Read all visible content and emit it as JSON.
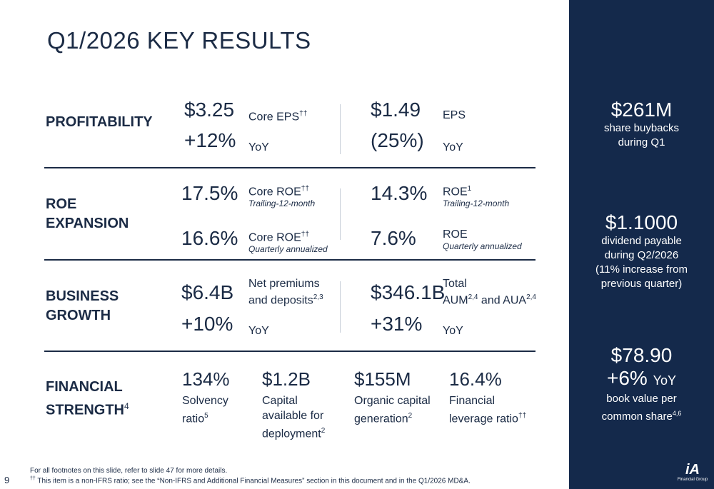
{
  "title": "Q1/2026 KEY RESULTS",
  "profitability": {
    "label": "PROFITABILITY",
    "core_eps_value": "$3.25",
    "core_eps_label": "Core EPS",
    "core_eps_sup": "††",
    "core_eps_yoy": "+12%",
    "core_eps_yoy_label": "YoY",
    "eps_value": "$1.49",
    "eps_label": "EPS",
    "eps_yoy": "(25%)",
    "eps_yoy_label": "YoY"
  },
  "roe": {
    "label_line1": "ROE",
    "label_line2": "EXPANSION",
    "core_roe_ttm_value": "17.5%",
    "core_roe_ttm_label": "Core ROE",
    "core_roe_ttm_sup": "††",
    "core_roe_ttm_sub": "Trailing-12-month",
    "roe_ttm_value": "14.3%",
    "roe_ttm_label": "ROE",
    "roe_ttm_sup": "1",
    "roe_ttm_sub": "Trailing-12-month",
    "core_roe_q_value": "16.6%",
    "core_roe_q_label": "Core ROE",
    "core_roe_q_sup": "††",
    "core_roe_q_sub": "Quarterly annualized",
    "roe_q_value": "7.6%",
    "roe_q_label": "ROE",
    "roe_q_sub": "Quarterly annualized"
  },
  "growth": {
    "label_line1": "BUSINESS",
    "label_line2": "GROWTH",
    "premiums_value": "$6.4B",
    "premiums_label_line1": "Net premiums",
    "premiums_label_line2": "and deposits",
    "premiums_sup": "2,3",
    "premiums_yoy": "+10%",
    "premiums_yoy_label": "YoY",
    "aum_value": "$346.1B",
    "aum_label_line1": "Total",
    "aum_label_a": "AUM",
    "aum_sup_a": "2,4",
    "aum_label_b": " and AUA",
    "aum_sup_b": "2,4",
    "aum_yoy": "+31%",
    "aum_yoy_label": "YoY"
  },
  "strength": {
    "label_line1": "FINANCIAL",
    "label_line2": "STRENGTH",
    "label_sup": "4",
    "solvency_value": "134%",
    "solvency_label_line1": "Solvency",
    "solvency_label_line2": "ratio",
    "solvency_sup": "5",
    "capital_value": "$1.2B",
    "capital_label_line1": "Capital",
    "capital_label_line2": "available for",
    "capital_label_line3": "deployment",
    "capital_sup": "2",
    "organic_value": "$155M",
    "organic_label_line1": "Organic capital",
    "organic_label_line2": "generation",
    "organic_sup": "2",
    "leverage_value": "16.4%",
    "leverage_label_line1": "Financial",
    "leverage_label_line2": "leverage ratio",
    "leverage_sup": "††"
  },
  "sidebar": {
    "buybacks_value": "$261M",
    "buybacks_line1": "share buybacks",
    "buybacks_line2": "during Q1",
    "dividend_value": "$1.1000",
    "dividend_line1": "dividend payable",
    "dividend_line2": "during Q2/2026",
    "dividend_line3": "(11% increase from",
    "dividend_line4": "previous quarter)",
    "book_value": "$78.90",
    "book_yoy": "+6%",
    "book_yoy_label": "YoY",
    "book_line1": "book value per",
    "book_line2": "common share",
    "book_sup": "4,6"
  },
  "footer": {
    "note1": "For all footnotes on this slide, refer to slide 47 for more details.",
    "note2_mark": "††",
    "note2": " This item is a non-IFRS ratio; see the “Non-IFRS and Additional Financial Measures” section in this document and in the Q1/2026 MD&A.",
    "page_number": "9"
  },
  "logo": {
    "mark": "iA",
    "text": "Financial Group"
  }
}
